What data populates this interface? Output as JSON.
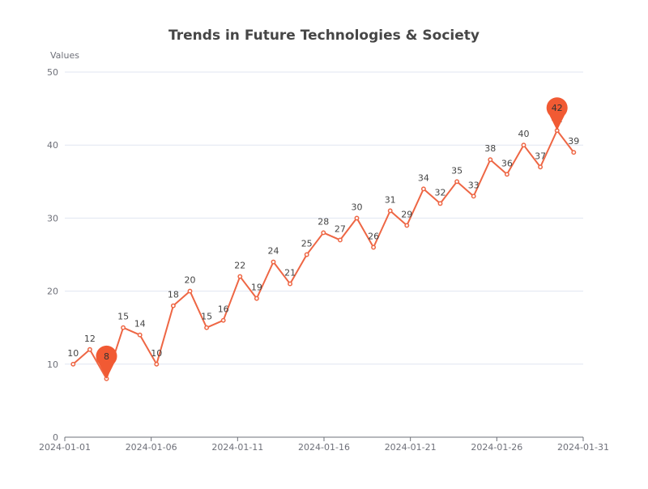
{
  "chart_data": {
    "type": "line",
    "title": "Trends in Future Technologies & Society",
    "ylabel": "Values",
    "xlabel": "",
    "ylim": [
      0,
      50
    ],
    "y_ticks": [
      "0",
      "10",
      "20",
      "30",
      "40",
      "50"
    ],
    "x_ticks": [
      "2024-01-01",
      "2024-01-06",
      "2024-01-11",
      "2024-01-16",
      "2024-01-21",
      "2024-01-26",
      "2024-01-31"
    ],
    "x": [
      "2024-01-01",
      "2024-01-02",
      "2024-01-03",
      "2024-01-04",
      "2024-01-05",
      "2024-01-06",
      "2024-01-07",
      "2024-01-08",
      "2024-01-09",
      "2024-01-10",
      "2024-01-11",
      "2024-01-12",
      "2024-01-13",
      "2024-01-14",
      "2024-01-15",
      "2024-01-16",
      "2024-01-17",
      "2024-01-18",
      "2024-01-19",
      "2024-01-20",
      "2024-01-21",
      "2024-01-22",
      "2024-01-23",
      "2024-01-24",
      "2024-01-25",
      "2024-01-26",
      "2024-01-27",
      "2024-01-28",
      "2024-01-29",
      "2024-01-30",
      "2024-01-31"
    ],
    "series": [
      {
        "values": [
          10,
          12,
          8,
          15,
          14,
          10,
          18,
          20,
          15,
          16,
          22,
          19,
          24,
          21,
          25,
          28,
          27,
          30,
          26,
          31,
          29,
          34,
          32,
          35,
          33,
          38,
          36,
          40,
          37,
          42,
          39
        ]
      }
    ],
    "markers": [
      {
        "x": "2024-01-03",
        "value": 8,
        "label": "8"
      },
      {
        "x": "2024-01-30",
        "value": 42,
        "label": "42"
      }
    ],
    "grid": true,
    "legend": "none",
    "colors": {
      "line": "#ee6644",
      "marker": "#f15a33",
      "grid": "#e0e6f1",
      "axis": "#6e7079"
    }
  }
}
